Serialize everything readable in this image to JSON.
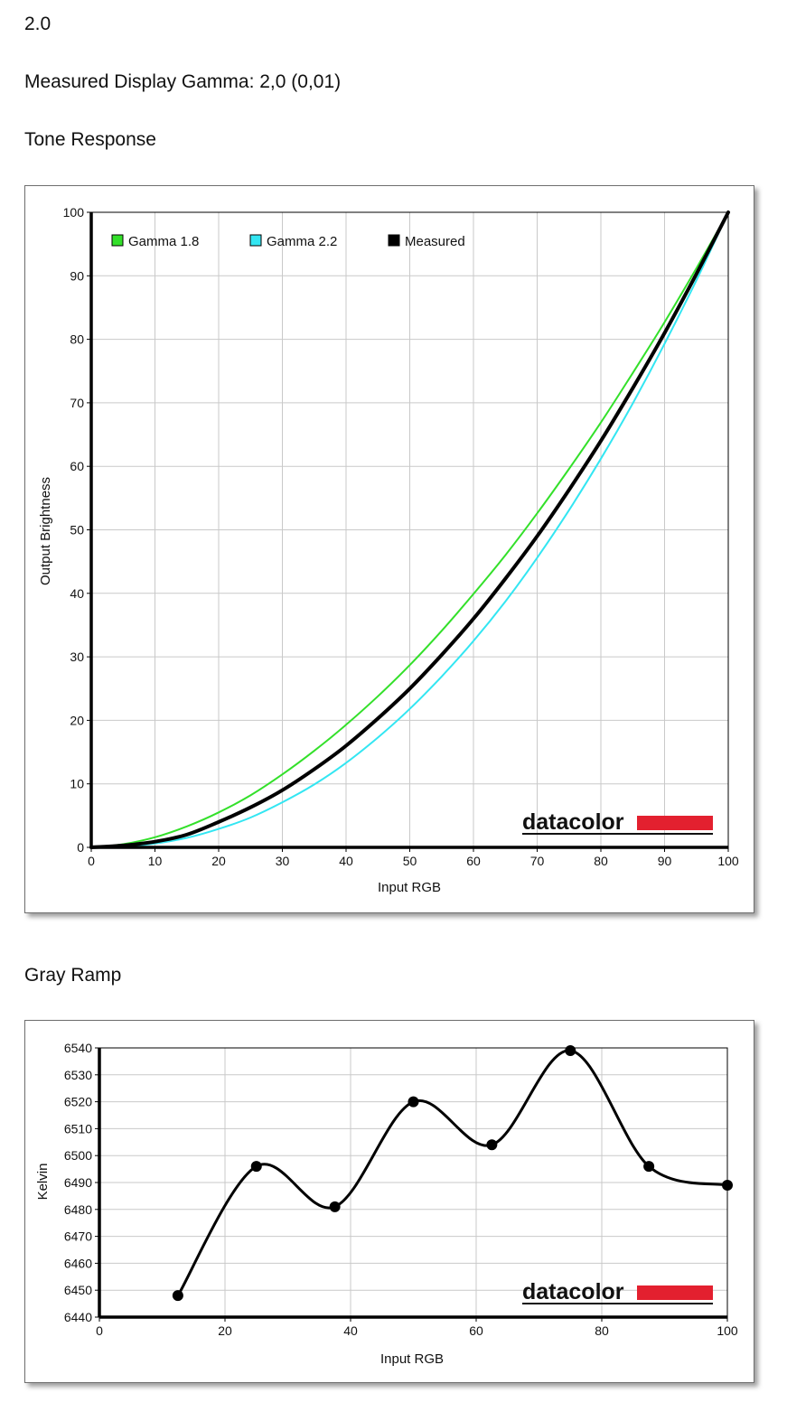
{
  "header": {
    "value": "2.0",
    "measured_gamma": "Measured Display Gamma: 2,0 (0,01)"
  },
  "sections": {
    "tone_title": "Tone Response",
    "gray_title": "Gray Ramp"
  },
  "logo": {
    "text": "datacolor",
    "bar_color": "#e3202f"
  },
  "chart_data": [
    {
      "type": "line",
      "title": "Tone Response",
      "xlabel": "Input RGB",
      "ylabel": "Output Brightness",
      "xlim": [
        0,
        100
      ],
      "ylim": [
        0,
        100
      ],
      "xticks": [
        0,
        10,
        20,
        30,
        40,
        50,
        60,
        70,
        80,
        90,
        100
      ],
      "yticks": [
        0,
        10,
        20,
        30,
        40,
        50,
        60,
        70,
        80,
        90,
        100
      ],
      "grid": true,
      "legend_position": "top-left",
      "series": [
        {
          "name": "Gamma 1.8",
          "color": "#33e02a",
          "x": [
            0,
            5,
            10,
            15,
            20,
            25,
            30,
            35,
            40,
            45,
            50,
            55,
            60,
            65,
            70,
            75,
            80,
            85,
            90,
            95,
            100
          ],
          "y": [
            0,
            0.5,
            1.6,
            3.3,
            5.5,
            8.2,
            11.5,
            15.2,
            19.3,
            23.8,
            28.7,
            34.1,
            39.9,
            46.0,
            52.6,
            59.6,
            66.9,
            74.7,
            82.7,
            91.2,
            100
          ]
        },
        {
          "name": "Gamma 2.2",
          "color": "#33e6f2",
          "x": [
            0,
            5,
            10,
            15,
            20,
            25,
            30,
            35,
            40,
            45,
            50,
            55,
            60,
            65,
            70,
            75,
            80,
            85,
            90,
            95,
            100
          ],
          "y": [
            0,
            0.1,
            0.6,
            1.5,
            2.9,
            4.7,
            7.1,
            9.9,
            13.3,
            17.3,
            21.8,
            26.9,
            32.5,
            38.7,
            45.6,
            53.1,
            61.2,
            69.9,
            79.3,
            89.3,
            100
          ]
        },
        {
          "name": "Measured",
          "color": "#000000",
          "x": [
            0,
            5,
            10,
            15,
            20,
            25,
            30,
            35,
            40,
            45,
            50,
            55,
            60,
            65,
            70,
            75,
            80,
            85,
            90,
            95,
            100
          ],
          "y": [
            0,
            0.3,
            0.9,
            2.0,
            4.0,
            6.3,
            9.0,
            12.3,
            16.0,
            20.3,
            25.0,
            30.3,
            36.0,
            42.3,
            49.0,
            56.3,
            64.0,
            72.3,
            81.0,
            90.3,
            100
          ]
        }
      ]
    },
    {
      "type": "line",
      "title": "Gray Ramp",
      "xlabel": "Input RGB",
      "ylabel": "Kelvin",
      "xlim": [
        0,
        100
      ],
      "ylim": [
        6440,
        6540
      ],
      "xticks": [
        0,
        20,
        40,
        60,
        80,
        100
      ],
      "yticks": [
        6440,
        6450,
        6460,
        6470,
        6480,
        6490,
        6500,
        6510,
        6520,
        6530,
        6540
      ],
      "grid": true,
      "series": [
        {
          "color": "#000000",
          "x": [
            12.5,
            25,
            37.5,
            50,
            62.5,
            75,
            87.5,
            100
          ],
          "y": [
            6448,
            6496,
            6481,
            6520,
            6504,
            6539,
            6496,
            6489
          ]
        }
      ]
    }
  ]
}
